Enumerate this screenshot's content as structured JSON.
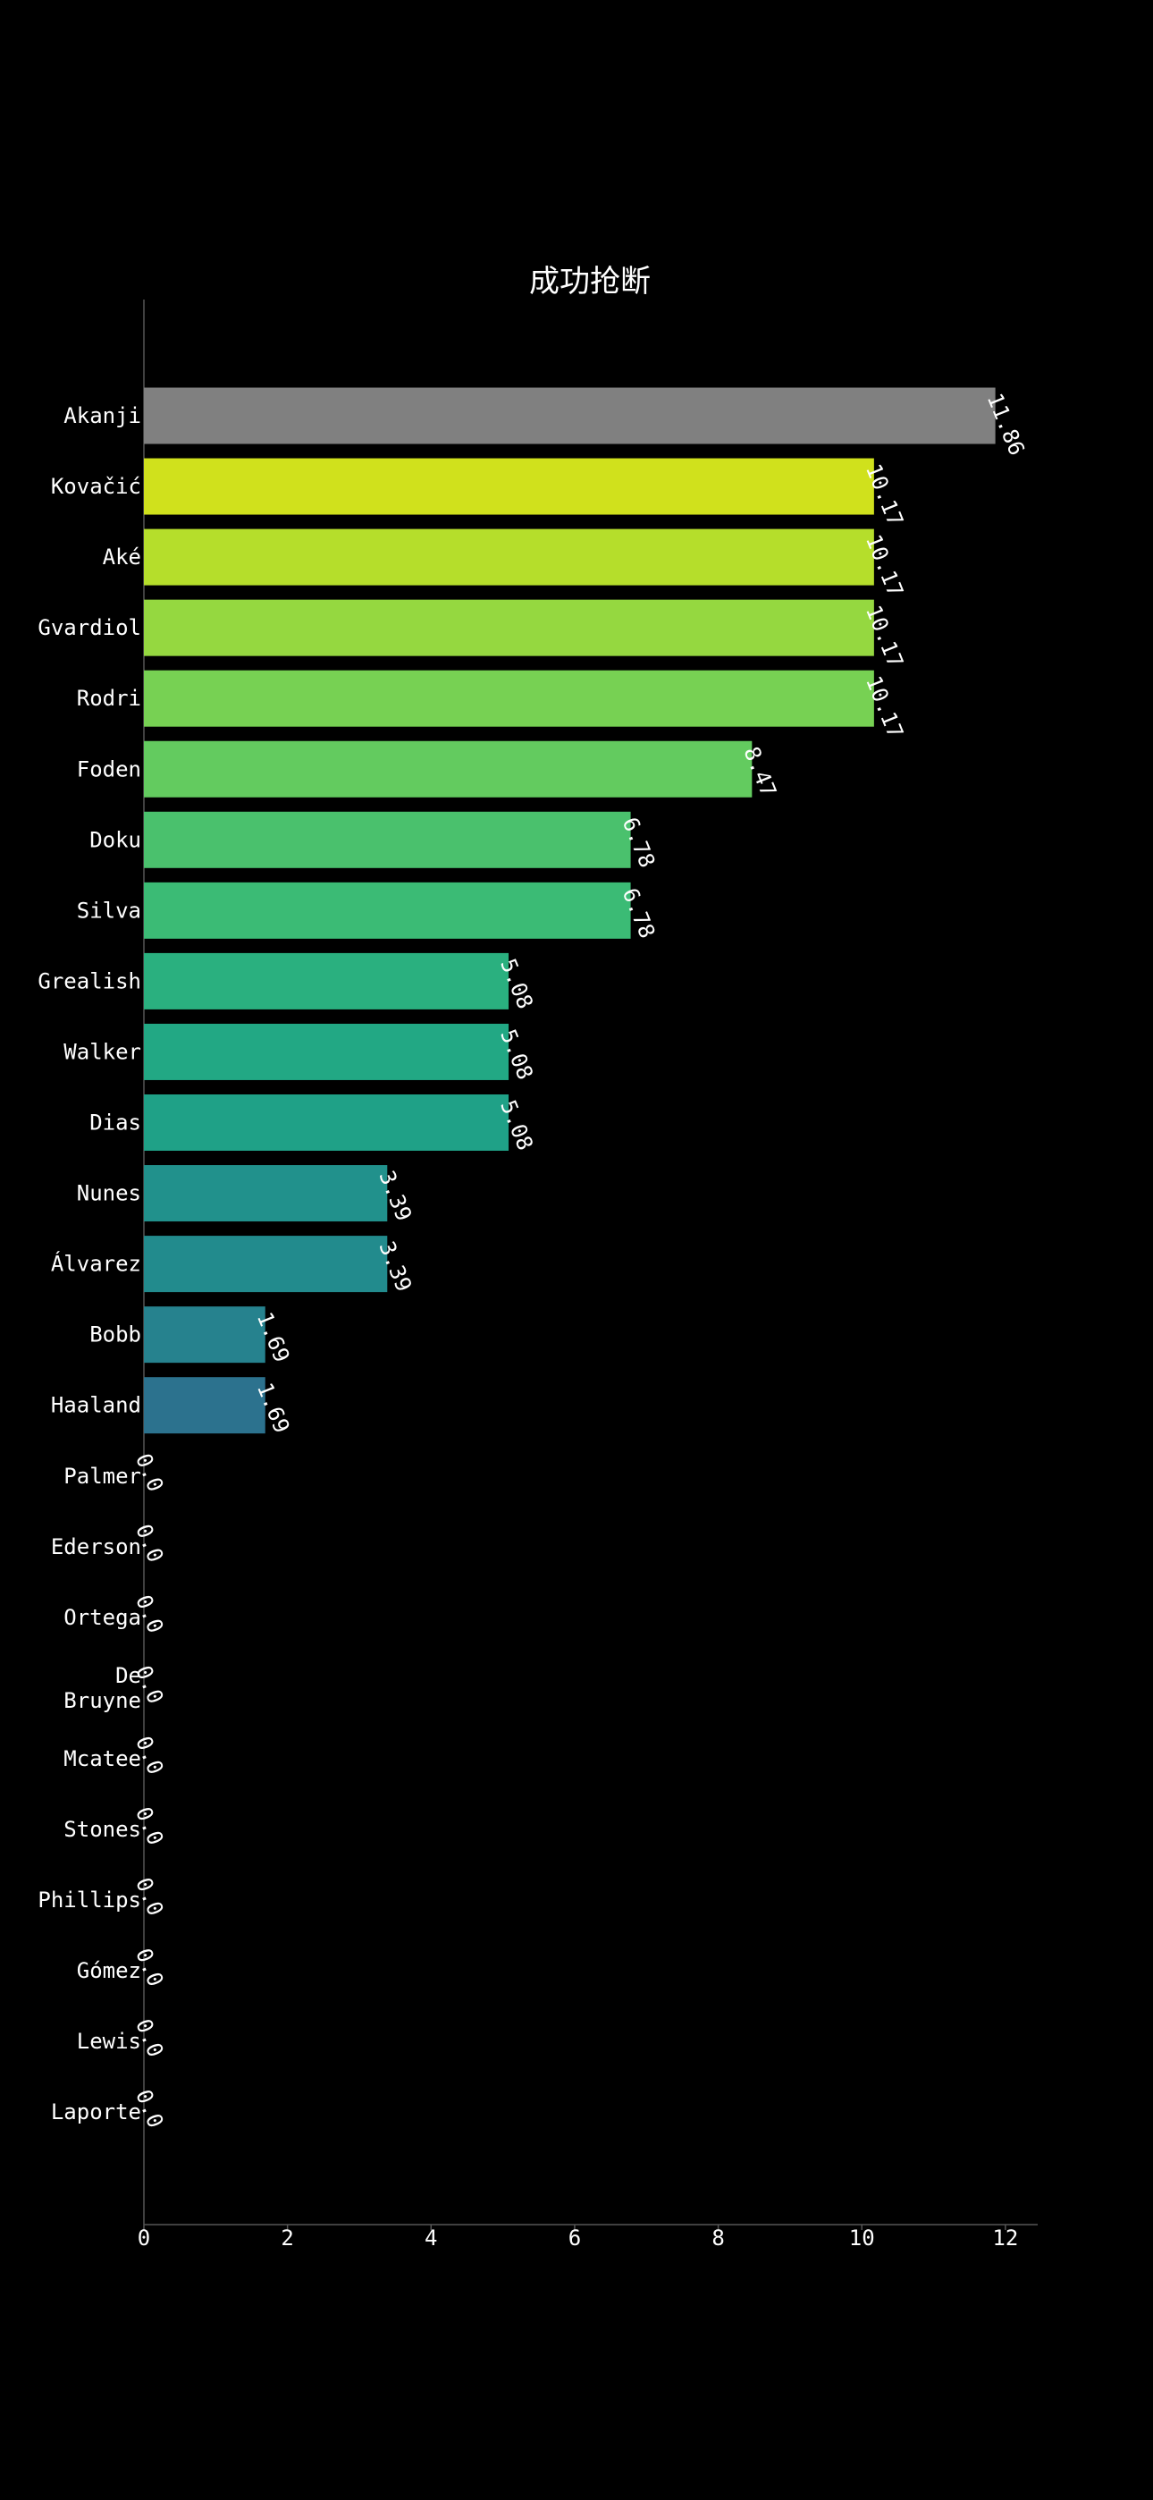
{
  "chart_data": {
    "type": "bar",
    "orientation": "horizontal",
    "title": "成功抢断",
    "xlabel": "",
    "ylabel": "",
    "xlim": [
      0,
      12.45
    ],
    "grid": false,
    "background": "#000000",
    "text_color": "#ffffff",
    "x_ticks": [
      "0",
      "2",
      "4",
      "6",
      "8",
      "10",
      "12"
    ],
    "x_tick_values": [
      0,
      2,
      4,
      6,
      8,
      10,
      12
    ],
    "categories": [
      "Akanji",
      "Kovačić",
      "Aké",
      "Gvardiol",
      "Rodri",
      "Foden",
      "Doku",
      "Silva",
      "Grealish",
      "Walker",
      "Dias",
      "Nunes",
      "Álvarez",
      "Bobb",
      "Haaland",
      "Palmer",
      "Ederson",
      "Ortega",
      "De Bruyne",
      "Mcatee",
      "Stones",
      "Phillips",
      "Gómez",
      "Lewis",
      "Laporte"
    ],
    "category_lines": [
      [
        "Akanji"
      ],
      [
        "Kovačić"
      ],
      [
        "Aké"
      ],
      [
        "Gvardiol"
      ],
      [
        "Rodri"
      ],
      [
        "Foden"
      ],
      [
        "Doku"
      ],
      [
        "Silva"
      ],
      [
        "Grealish"
      ],
      [
        "Walker"
      ],
      [
        "Dias"
      ],
      [
        "Nunes"
      ],
      [
        "Álvarez"
      ],
      [
        "Bobb"
      ],
      [
        "Haaland"
      ],
      [
        "Palmer"
      ],
      [
        "Ederson"
      ],
      [
        "Ortega"
      ],
      [
        "De",
        "Bruyne"
      ],
      [
        "Mcatee"
      ],
      [
        "Stones"
      ],
      [
        "Phillips"
      ],
      [
        "Gómez"
      ],
      [
        "Lewis"
      ],
      [
        "Laporte"
      ]
    ],
    "values": [
      11.86,
      10.17,
      10.17,
      10.17,
      10.17,
      8.47,
      6.78,
      6.78,
      5.08,
      5.08,
      5.08,
      3.39,
      3.39,
      1.69,
      1.69,
      0.0,
      0.0,
      0.0,
      0.0,
      0.0,
      0.0,
      0.0,
      0.0,
      0.0,
      0.0
    ],
    "value_labels": [
      "11.86",
      "10.17",
      "10.17",
      "10.17",
      "10.17",
      "8.47",
      "6.78",
      "6.78",
      "5.08",
      "5.08",
      "5.08",
      "3.39",
      "3.39",
      "1.69",
      "1.69",
      "0.0",
      "0.0",
      "0.0",
      "0.0",
      "0.0",
      "0.0",
      "0.0",
      "0.0",
      "0.0",
      "0.0"
    ],
    "colors": [
      "#808080",
      "#d0e11c",
      "#b5de2b",
      "#95d840",
      "#77d153",
      "#63cb5f",
      "#4ac16d",
      "#3bbb75",
      "#2ab07f",
      "#22a884",
      "#1fa187",
      "#21918c",
      "#228b8d",
      "#26828e",
      "#2c728e",
      "#31688e",
      "#355f8d",
      "#3b528b",
      "#404688",
      "#443a83",
      "#472d7b",
      "#482173",
      "#481467",
      "#46085c",
      "#440154"
    ]
  }
}
